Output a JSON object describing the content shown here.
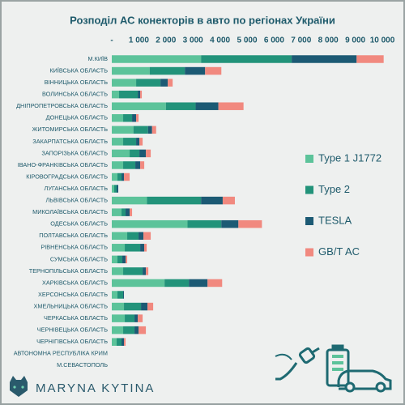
{
  "chart_data": {
    "type": "stacked-bar-horizontal",
    "title": "Розподіл АС конекторів в авто по регіонах України",
    "author": "MARYNA KYTINA",
    "legend": "right",
    "categories": [
      "М.КИЇВ",
      "КИЇВСЬКА ОБЛАСТЬ",
      "ВІННИЦЬКА ОБЛАСТЬ",
      "ВОЛИНСЬКА ОБЛАСТЬ",
      "ДНІПРОПЕТРОВСЬКА ОБЛАСТЬ",
      "ДОНЕЦЬКА ОБЛАСТЬ",
      "ЖИТОМИРСЬКА ОБЛАСТЬ",
      "ЗАКАРПАТСЬКА ОБЛАСТЬ",
      "ЗАПОРІЗЬКА ОБЛАСТЬ",
      "ІВАНО-ФРАНКІВСЬКА ОБЛАСТЬ",
      "КІРОВОГРАДСЬКА ОБЛАСТЬ",
      "ЛУГАНСЬКА ОБЛАСТЬ",
      "ЛЬВІВСЬКА ОБЛАСТЬ",
      "МИКОЛАЇВСЬКА ОБЛАСТЬ",
      "ОДЕСЬКА ОБЛАСТЬ",
      "ПОЛТАВСЬКА ОБЛАСТЬ",
      "РІВНЕНСЬКА ОБЛАСТЬ",
      "СУМСЬКА ОБЛАСТЬ",
      "ТЕРНОПІЛЬСЬКА ОБЛАСТЬ",
      "ХАРКІВСЬКА ОБЛАСТЬ",
      "ХЕРСОНСЬКА ОБЛАСТЬ",
      "ХМЕЛЬНИЦЬКА ОБЛАСТЬ",
      "ЧЕРКАСЬКА ОБЛАСТЬ",
      "ЧЕРНІВЕЦЬКА ОБЛАСТЬ",
      "ЧЕРНІГІВСЬКА ОБЛАСТЬ",
      "АВТОНОМНА РЕСПУБЛІКА КРИМ",
      "М.СЕВАСТОПОЛЬ"
    ],
    "series": [
      {
        "name": "Type 1 J1772",
        "color": "#5cc39a",
        "values": [
          3300,
          1400,
          900,
          270,
          2000,
          420,
          800,
          420,
          660,
          420,
          210,
          90,
          1300,
          360,
          2800,
          570,
          480,
          210,
          420,
          1950,
          210,
          450,
          480,
          420,
          180,
          0,
          0
        ]
      },
      {
        "name": "Type 2",
        "color": "#22937a",
        "values": [
          3350,
          1300,
          900,
          690,
          1100,
          330,
          540,
          480,
          360,
          450,
          150,
          90,
          2000,
          150,
          1250,
          420,
          570,
          180,
          720,
          900,
          210,
          630,
          360,
          420,
          180,
          0,
          0
        ]
      },
      {
        "name": "TESLA",
        "color": "#1c5a74",
        "values": [
          2400,
          750,
          270,
          90,
          840,
          150,
          150,
          120,
          240,
          180,
          90,
          60,
          800,
          150,
          630,
          180,
          150,
          120,
          120,
          690,
          30,
          240,
          120,
          150,
          90,
          0,
          0
        ]
      },
      {
        "name": "GB/T AC",
        "color": "#f1897f",
        "values": [
          1000,
          600,
          180,
          60,
          930,
          90,
          150,
          120,
          180,
          150,
          210,
          0,
          450,
          90,
          870,
          270,
          90,
          60,
          90,
          540,
          0,
          210,
          180,
          270,
          60,
          0,
          0
        ]
      }
    ],
    "xlim": [
      0,
      10000
    ],
    "xticks": [
      {
        "value": 0,
        "label": "-"
      },
      {
        "value": 1000,
        "label": "1 000"
      },
      {
        "value": 2000,
        "label": "2 000"
      },
      {
        "value": 3000,
        "label": "3 000"
      },
      {
        "value": 4000,
        "label": "4 000"
      },
      {
        "value": 5000,
        "label": "5 000"
      },
      {
        "value": 6000,
        "label": "6 000"
      },
      {
        "value": 7000,
        "label": "7 000"
      },
      {
        "value": 8000,
        "label": "8 000"
      },
      {
        "value": 9000,
        "label": "9 000"
      },
      {
        "value": 10000,
        "label": "10 000"
      }
    ]
  }
}
